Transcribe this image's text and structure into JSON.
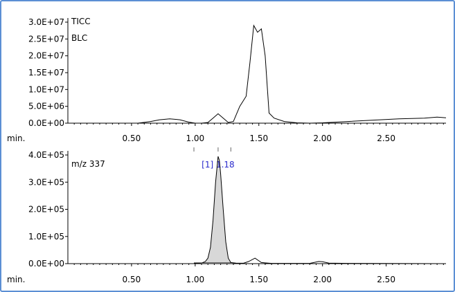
{
  "chart_data": [
    {
      "type": "line",
      "title": "",
      "series_labels": [
        "TICC",
        "BLC"
      ],
      "xlabel": "min.",
      "xlim": [
        0.0,
        2.97
      ],
      "ylim": [
        0,
        30000000
      ],
      "x_ticks": [
        {
          "value": 0.5,
          "label": "0.50"
        },
        {
          "value": 1.0,
          "label": "1.00"
        },
        {
          "value": 1.5,
          "label": "1.50"
        },
        {
          "value": 2.0,
          "label": "2.00"
        },
        {
          "value": 2.5,
          "label": "2.50"
        }
      ],
      "y_ticks": [
        {
          "value": 0,
          "label": "0.0E+00"
        },
        {
          "value": 5000000,
          "label": "5.0E+06"
        },
        {
          "value": 10000000,
          "label": "1.0E+07"
        },
        {
          "value": 15000000,
          "label": "1.5E+07"
        },
        {
          "value": 20000000,
          "label": "2.0E+07"
        },
        {
          "value": 25000000,
          "label": "2.5E+07"
        },
        {
          "value": 30000000,
          "label": "3.0E+07"
        }
      ],
      "series": [
        {
          "x": [
            0.0,
            0.3,
            0.55,
            0.65,
            0.72,
            0.8,
            0.88,
            0.95,
            1.0,
            1.05,
            1.1,
            1.14,
            1.18,
            1.22,
            1.26,
            1.3,
            1.35,
            1.4,
            1.43,
            1.46,
            1.49,
            1.52,
            1.55,
            1.58,
            1.62,
            1.7,
            1.8,
            1.9,
            2.0,
            2.2,
            2.4,
            2.6,
            2.8,
            2.9,
            2.97
          ],
          "y": [
            0,
            0,
            0,
            500000,
            1000000,
            1300000,
            1000000,
            300000,
            0,
            0,
            200000,
            1500000,
            2800000,
            1500000,
            200000,
            500000,
            5000000,
            8000000,
            18000000,
            29000000,
            27000000,
            28000000,
            20000000,
            3000000,
            1500000,
            500000,
            100000,
            0,
            100000,
            500000,
            900000,
            1300000,
            1500000,
            1800000,
            1600000
          ]
        }
      ]
    },
    {
      "type": "area",
      "title": "",
      "series_labels": [
        "m/z 337"
      ],
      "xlabel": "min.",
      "xlim": [
        0.0,
        2.97
      ],
      "ylim": [
        0,
        400000
      ],
      "x_ticks": [
        {
          "value": 0.5,
          "label": "0.50"
        },
        {
          "value": 1.0,
          "label": "1.00"
        },
        {
          "value": 1.5,
          "label": "1.50"
        },
        {
          "value": 2.0,
          "label": "2.00"
        },
        {
          "value": 2.5,
          "label": "2.50"
        }
      ],
      "y_ticks": [
        {
          "value": 0,
          "label": "0.0E+00"
        },
        {
          "value": 100000,
          "label": "1.0E+05"
        },
        {
          "value": 200000,
          "label": "2.0E+05"
        },
        {
          "value": 300000,
          "label": "3.0E+05"
        },
        {
          "value": 400000,
          "label": "4.0E+05"
        }
      ],
      "peak_annotation": {
        "label": "[1]  1.18",
        "x": 1.18,
        "integration_start": 0.99,
        "integration_end": 1.28
      },
      "series": [
        {
          "x": [
            0.0,
            0.9,
            1.0,
            1.05,
            1.08,
            1.1,
            1.12,
            1.14,
            1.16,
            1.18,
            1.19,
            1.2,
            1.22,
            1.24,
            1.26,
            1.28,
            1.32,
            1.38,
            1.42,
            1.47,
            1.52,
            1.6,
            1.9,
            1.97,
            2.0,
            2.05,
            2.2,
            2.5,
            2.97
          ],
          "y": [
            0,
            0,
            0,
            2000,
            8000,
            20000,
            60000,
            160000,
            300000,
            395000,
            380000,
            330000,
            200000,
            80000,
            20000,
            4000,
            2000,
            1500,
            8000,
            20000,
            4000,
            1000,
            1000,
            8000,
            7000,
            2000,
            1000,
            500,
            0
          ]
        }
      ]
    }
  ]
}
